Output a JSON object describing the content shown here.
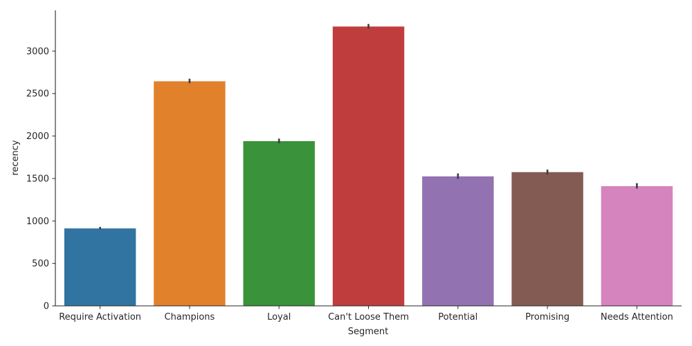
{
  "chart_data": {
    "type": "bar",
    "title": "",
    "xlabel": "Segment",
    "ylabel": "recency",
    "ylim": [
      0,
      3480
    ],
    "yticks": [
      0,
      500,
      1000,
      1500,
      2000,
      2500,
      3000
    ],
    "grid": false,
    "categories": [
      "Require Activation",
      "Champions",
      "Loyal",
      "Can't Loose Them",
      "Potential",
      "Promising",
      "Needs Attention"
    ],
    "values": [
      912,
      2645,
      1940,
      3290,
      1525,
      1575,
      1410
    ],
    "error_low": [
      898,
      2622,
      1915,
      3265,
      1495,
      1545,
      1382
    ],
    "error_high": [
      930,
      2675,
      1970,
      3320,
      1560,
      1605,
      1445
    ],
    "colors": [
      "#3274a1",
      "#e1812c",
      "#3a923a",
      "#c03d3e",
      "#9372b2",
      "#845b53",
      "#d684bd"
    ]
  }
}
